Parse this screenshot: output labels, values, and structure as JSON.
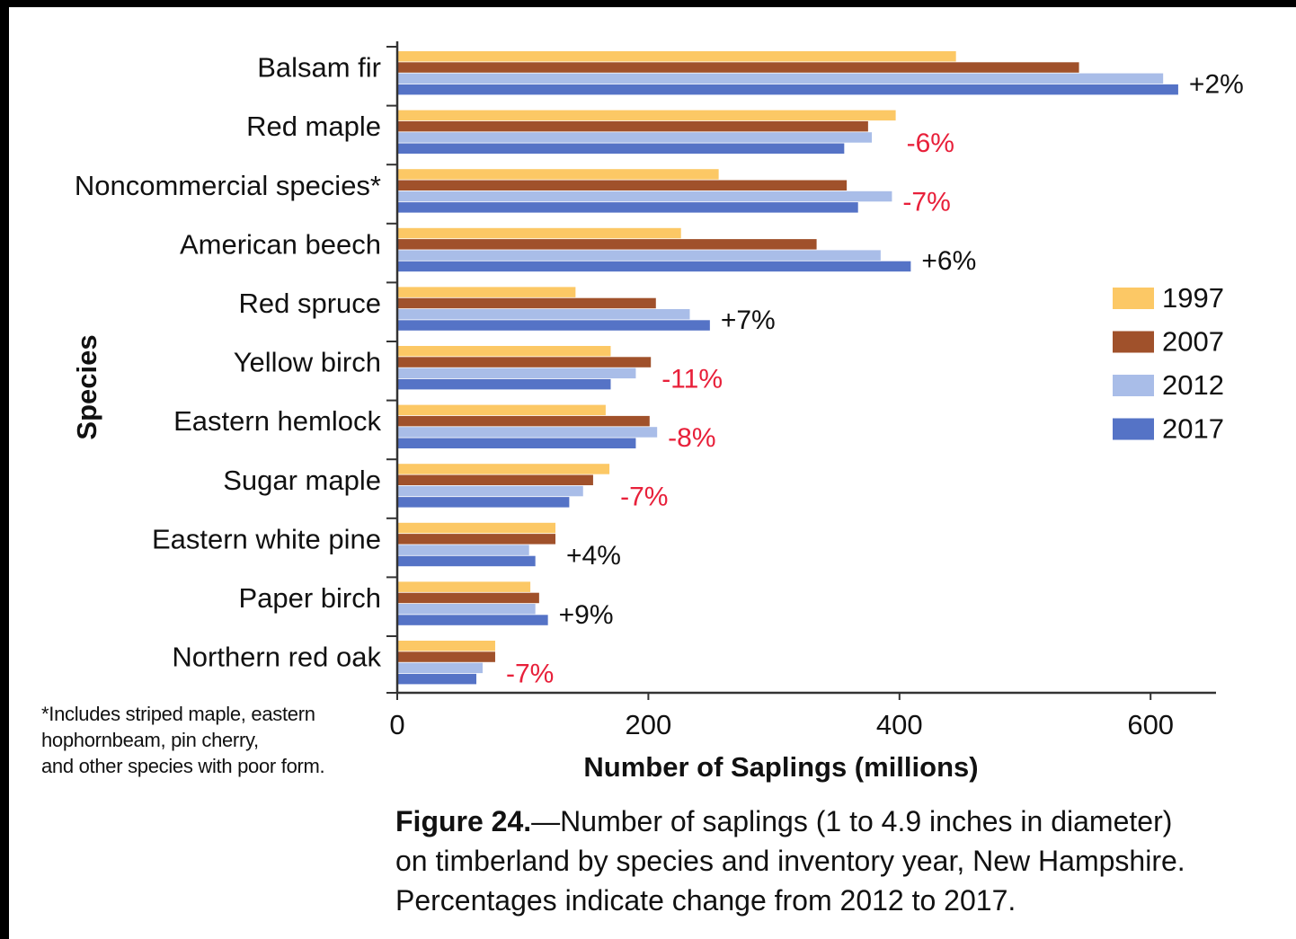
{
  "chart_data": {
    "type": "bar",
    "orientation": "horizontal",
    "ylabel": "Species",
    "xlabel": "Number of Saplings (millions)",
    "xlim": [
      0,
      650
    ],
    "xticks": [
      0,
      200,
      400,
      600
    ],
    "grid": false,
    "legend_position": "right",
    "categories": [
      "Balsam fir",
      "Red maple",
      "Noncommercial species*",
      "American beech",
      "Red spruce",
      "Yellow birch",
      "Eastern hemlock",
      "Sugar maple",
      "Eastern white pine",
      "Paper birch",
      "Northern red oak"
    ],
    "series": [
      {
        "name": "1997",
        "color": "#FCC865",
        "values": [
          445,
          397,
          256,
          226,
          142,
          170,
          166,
          169,
          126,
          106,
          78
        ]
      },
      {
        "name": "2007",
        "color": "#A0512B",
        "values": [
          543,
          375,
          358,
          334,
          206,
          202,
          201,
          156,
          126,
          113,
          78
        ]
      },
      {
        "name": "2012",
        "color": "#A9BDE8",
        "values": [
          610,
          378,
          394,
          385,
          233,
          190,
          207,
          148,
          105,
          110,
          68
        ]
      },
      {
        "name": "2017",
        "color": "#5573C6",
        "values": [
          622,
          356,
          367,
          409,
          249,
          170,
          190,
          137,
          110,
          120,
          63
        ]
      }
    ],
    "annotations": [
      "+2%",
      "-6%",
      "-7%",
      "+6%",
      "+7%",
      "-11%",
      "-8%",
      "-7%",
      "+4%",
      "+9%",
      "-7%"
    ],
    "annotation_colors": {
      "positive": "#111111",
      "negative": "#E8203A"
    }
  },
  "footnote": {
    "line1": "*Includes striped maple, eastern",
    "line2": "hophornbeam, pin cherry,",
    "line3": "and other species with poor form."
  },
  "caption": {
    "label": "Figure 24.",
    "line1": "—Number of saplings (1 to 4.9 inches in diameter)",
    "line2": "on timberland by species and inventory year, New Hampshire.",
    "line3": "Percentages indicate change from 2012 to 2017."
  }
}
